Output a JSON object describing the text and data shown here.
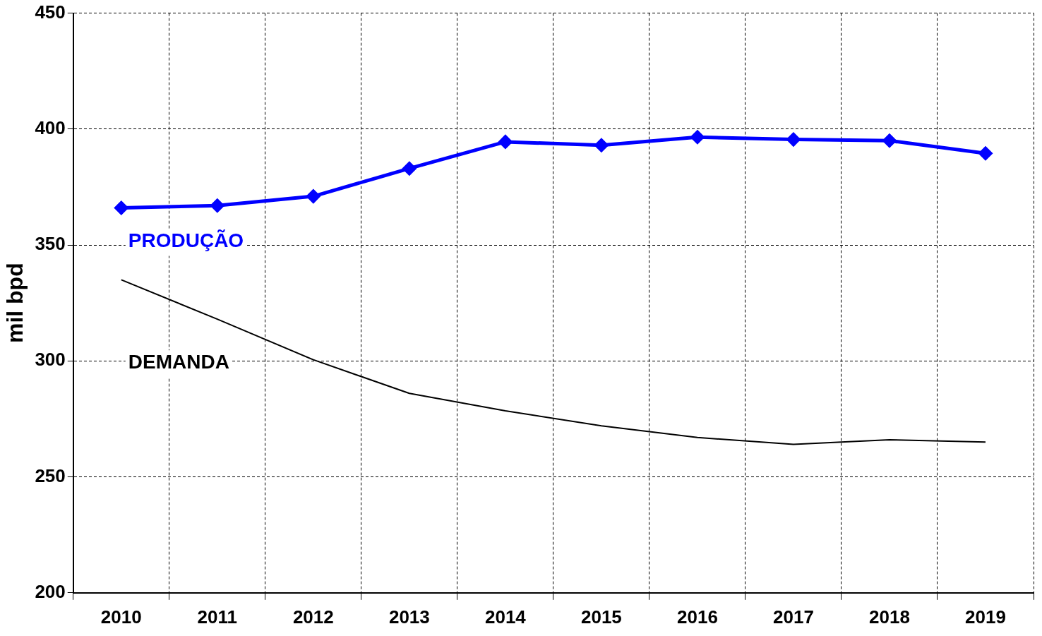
{
  "chart_data": {
    "type": "line",
    "ylabel": "mil bpd",
    "categories": [
      "2010",
      "2011",
      "2012",
      "2013",
      "2014",
      "2015",
      "2016",
      "2017",
      "2018",
      "2019"
    ],
    "series": [
      {
        "name": "PRODUÇÃO",
        "color": "#0000ff",
        "marker": "diamond",
        "values": [
          366,
          367,
          371,
          383,
          394.5,
          393,
          396.5,
          395.5,
          395,
          389.5
        ]
      },
      {
        "name": "DEMANDA",
        "color": "#000000",
        "marker": "none",
        "values": [
          335,
          318,
          300.5,
          286,
          278.5,
          272,
          267,
          264,
          266,
          265
        ]
      }
    ],
    "ylim": [
      200,
      450
    ],
    "yticks": [
      200,
      250,
      300,
      350,
      400,
      450
    ],
    "grid": true,
    "line_style": "solid",
    "legend": false
  }
}
